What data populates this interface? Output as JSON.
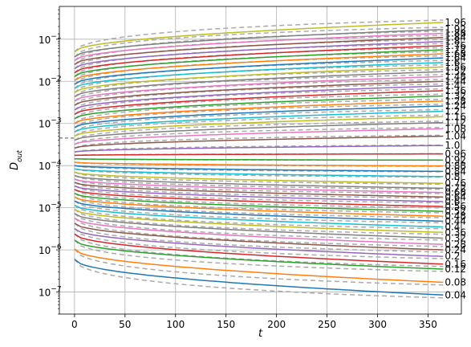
{
  "chart_data": {
    "type": "line",
    "title": "",
    "xlabel": "t",
    "ylabel_main": "D",
    "ylabel_sub": "out",
    "y_scale": "log",
    "xlim": [
      -15,
      383
    ],
    "ylim": [
      3e-08,
      0.6
    ],
    "grid": true,
    "x_ticks": [
      0,
      50,
      100,
      150,
      200,
      250,
      300,
      350
    ],
    "x_tick_labels": [
      "0",
      "50",
      "100",
      "150",
      "200",
      "250",
      "300",
      "350"
    ],
    "y_ticks": [
      1e-07,
      1e-06,
      1e-05,
      0.0001,
      0.001,
      0.01,
      0.1
    ],
    "y_tick_labels": [
      {
        "base": "10",
        "exp": "−7"
      },
      {
        "base": "10",
        "exp": "−6"
      },
      {
        "base": "10",
        "exp": "−5"
      },
      {
        "base": "10",
        "exp": "−4"
      },
      {
        "base": "10",
        "exp": "−3"
      },
      {
        "base": "10",
        "exp": "−2"
      },
      {
        "base": "10",
        "exp": "−1"
      }
    ],
    "reference_line": {
      "y": 0.00045,
      "x_from": -15,
      "x_to": 0
    },
    "series_t_end": 365,
    "series_colors": [
      "#1f77b4",
      "#ff7f0e",
      "#2ca02c",
      "#d62728",
      "#9467bd",
      "#8c564b",
      "#e377c2",
      "#7f7f7f",
      "#bcbd22",
      "#17becf"
    ],
    "dashed_color": "#aaaaaa",
    "series": [
      {
        "label": "0.04",
        "y_start": 6e-07,
        "y_end": 8.5e-08
      },
      {
        "label": "0.08",
        "y_start": 1.05e-06,
        "y_end": 1.7e-07
      },
      {
        "label": "0.12",
        "y_start": 1.7e-06,
        "y_end": 3.5e-07
      },
      {
        "label": "0.16",
        "y_start": 2.4e-06,
        "y_end": 4.6e-07
      },
      {
        "label": "0.2",
        "y_start": 3.2e-06,
        "y_end": 7e-07
      },
      {
        "label": "0.24",
        "y_start": 4.3e-06,
        "y_end": 1e-06
      },
      {
        "label": "0.28",
        "y_start": 5.7e-06,
        "y_end": 1.35e-06
      },
      {
        "label": "0.32",
        "y_start": 7.3e-06,
        "y_end": 1.9e-06
      },
      {
        "label": "0.36",
        "y_start": 9.2e-06,
        "y_end": 2.6e-06
      },
      {
        "label": "0.4",
        "y_start": 1.15e-05,
        "y_end": 3.5e-06
      },
      {
        "label": "0.44",
        "y_start": 1.45e-05,
        "y_end": 4.8e-06
      },
      {
        "label": "0.48",
        "y_start": 1.8e-05,
        "y_end": 6.3e-06
      },
      {
        "label": "0.52",
        "y_start": 2.2e-05,
        "y_end": 8.2e-06
      },
      {
        "label": "0.56",
        "y_start": 2.7e-05,
        "y_end": 1.07e-05
      },
      {
        "label": "0.6",
        "y_start": 3.3e-05,
        "y_end": 1.4e-05
      },
      {
        "label": "0.64",
        "y_start": 4e-05,
        "y_end": 1.8e-05
      },
      {
        "label": "0.68",
        "y_start": 4.8e-05,
        "y_end": 2.3e-05
      },
      {
        "label": "0.72",
        "y_start": 5.8e-05,
        "y_end": 2.9e-05
      },
      {
        "label": "0.76",
        "y_start": 7e-05,
        "y_end": 3.8e-05
      },
      {
        "label": "0.8",
        "y_start": 8.4e-05,
        "y_end": 5.5e-05
      },
      {
        "label": "0.84",
        "y_start": 0.0001,
        "y_end": 7.3e-05
      },
      {
        "label": "0.88",
        "y_start": 0.00012,
        "y_end": 9.8e-05
      },
      {
        "label": "0.92",
        "y_start": 0.000145,
        "y_end": 0.000135
      },
      {
        "label": "0.96",
        "y_start": 0.000175,
        "y_end": 0.00019
      },
      {
        "label": "1.0",
        "y_start": 0.00021,
        "y_end": 0.0003
      },
      {
        "label": "1.04",
        "y_start": 0.00026,
        "y_end": 0.0005
      },
      {
        "label": "1.08",
        "y_start": 0.00032,
        "y_end": 0.00075
      },
      {
        "label": "1.12",
        "y_start": 0.0004,
        "y_end": 0.00105
      },
      {
        "label": "1.16",
        "y_start": 0.0005,
        "y_end": 0.00145
      },
      {
        "label": "1.2",
        "y_start": 0.00063,
        "y_end": 0.00195
      },
      {
        "label": "1.24",
        "y_start": 0.0008,
        "y_end": 0.0026
      },
      {
        "label": "1.28",
        "y_start": 0.001,
        "y_end": 0.0034
      },
      {
        "label": "1.32",
        "y_start": 0.0013,
        "y_end": 0.0045
      },
      {
        "label": "1.36",
        "y_start": 0.00165,
        "y_end": 0.006
      },
      {
        "label": "1.4",
        "y_start": 0.0021,
        "y_end": 0.0078
      },
      {
        "label": "1.44",
        "y_start": 0.0027,
        "y_end": 0.01
      },
      {
        "label": "1.48",
        "y_start": 0.0034,
        "y_end": 0.013
      },
      {
        "label": "1.52",
        "y_start": 0.0043,
        "y_end": 0.017
      },
      {
        "label": "1.56",
        "y_start": 0.0054,
        "y_end": 0.022
      },
      {
        "label": "1.6",
        "y_start": 0.0068,
        "y_end": 0.028
      },
      {
        "label": "1.64",
        "y_start": 0.0085,
        "y_end": 0.036
      },
      {
        "label": "1.68",
        "y_start": 0.0105,
        "y_end": 0.045
      },
      {
        "label": "1.72",
        "y_start": 0.013,
        "y_end": 0.056
      },
      {
        "label": "1.76",
        "y_start": 0.016,
        "y_end": 0.07
      },
      {
        "label": "1.8",
        "y_start": 0.02,
        "y_end": 0.088
      },
      {
        "label": "1.84",
        "y_start": 0.025,
        "y_end": 0.11
      },
      {
        "label": "1.88",
        "y_start": 0.031,
        "y_end": 0.138
      },
      {
        "label": "1.92",
        "y_start": 0.038,
        "y_end": 0.17
      },
      {
        "label": "1.96",
        "y_start": 0.05,
        "y_end": 0.25
      }
    ]
  }
}
